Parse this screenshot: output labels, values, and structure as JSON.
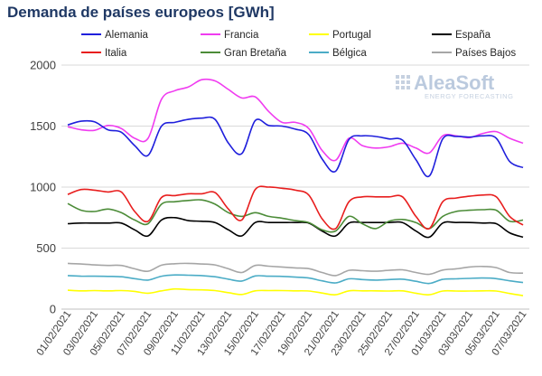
{
  "title": "Demanda de países europeos [GWh]",
  "watermark": {
    "brand": "AleaSoft",
    "tagline": "ENERGY FORECASTING"
  },
  "chart_data": {
    "type": "line",
    "title": "Demanda de países europeos [GWh]",
    "xlabel": "",
    "ylabel": "",
    "ylim": [
      0,
      2000
    ],
    "yticks": [
      0,
      500,
      1000,
      1500,
      2000
    ],
    "grid": true,
    "legend_position": "top",
    "x": [
      "01/02/2021",
      "02/02/2021",
      "03/02/2021",
      "04/02/2021",
      "05/02/2021",
      "06/02/2021",
      "07/02/2021",
      "08/02/2021",
      "09/02/2021",
      "10/02/2021",
      "11/02/2021",
      "12/02/2021",
      "13/02/2021",
      "14/02/2021",
      "15/02/2021",
      "16/02/2021",
      "17/02/2021",
      "18/02/2021",
      "19/02/2021",
      "20/02/2021",
      "21/02/2021",
      "22/02/2021",
      "23/02/2021",
      "24/02/2021",
      "25/02/2021",
      "26/02/2021",
      "27/02/2021",
      "28/02/2021",
      "01/03/2021",
      "02/03/2021",
      "03/03/2021",
      "04/03/2021",
      "05/03/2021",
      "06/03/2021",
      "07/03/2021"
    ],
    "x_tick_labels": [
      "01/02/2021",
      "03/02/2021",
      "05/02/2021",
      "07/02/2021",
      "09/02/2021",
      "11/02/2021",
      "13/02/2021",
      "15/02/2021",
      "17/02/2021",
      "19/02/2021",
      "21/02/2021",
      "23/02/2021",
      "25/02/2021",
      "27/02/2021",
      "01/03/2021",
      "03/03/2021",
      "05/03/2021",
      "07/03/2021"
    ],
    "series": [
      {
        "name": "Alemania",
        "color": "#1f1fdc",
        "values": [
          1510,
          1540,
          1535,
          1470,
          1450,
          1340,
          1260,
          1500,
          1530,
          1555,
          1565,
          1555,
          1360,
          1275,
          1545,
          1505,
          1500,
          1475,
          1430,
          1230,
          1130,
          1390,
          1420,
          1415,
          1395,
          1385,
          1225,
          1090,
          1395,
          1415,
          1410,
          1420,
          1400,
          1210,
          1160
        ]
      },
      {
        "name": "Francia",
        "color": "#f03cf0",
        "values": [
          1495,
          1470,
          1465,
          1505,
          1480,
          1400,
          1400,
          1720,
          1790,
          1820,
          1880,
          1870,
          1800,
          1730,
          1740,
          1620,
          1530,
          1530,
          1480,
          1300,
          1220,
          1400,
          1340,
          1320,
          1330,
          1360,
          1320,
          1280,
          1420,
          1420,
          1405,
          1440,
          1455,
          1400,
          1360
        ]
      },
      {
        "name": "Portugal",
        "color": "#ffff00",
        "values": [
          155,
          150,
          152,
          150,
          152,
          145,
          130,
          150,
          165,
          160,
          158,
          152,
          135,
          120,
          150,
          152,
          152,
          150,
          148,
          132,
          118,
          150,
          150,
          150,
          148,
          150,
          130,
          118,
          148,
          148,
          148,
          150,
          148,
          128,
          110
        ]
      },
      {
        "name": "España",
        "color": "#000000",
        "values": [
          700,
          705,
          705,
          705,
          705,
          650,
          600,
          730,
          750,
          725,
          720,
          710,
          650,
          600,
          710,
          710,
          710,
          710,
          705,
          640,
          600,
          705,
          710,
          710,
          710,
          710,
          640,
          590,
          705,
          710,
          710,
          705,
          700,
          625,
          590
        ]
      },
      {
        "name": "Italia",
        "color": "#e81e1e",
        "values": [
          940,
          980,
          975,
          960,
          960,
          800,
          720,
          915,
          930,
          945,
          945,
          955,
          820,
          730,
          980,
          1000,
          990,
          975,
          935,
          740,
          660,
          880,
          920,
          920,
          920,
          920,
          760,
          660,
          880,
          910,
          925,
          935,
          920,
          760,
          690
        ]
      },
      {
        "name": "Gran Bretaña",
        "color": "#4c8c38",
        "values": [
          865,
          810,
          800,
          820,
          790,
          730,
          700,
          860,
          880,
          890,
          895,
          860,
          790,
          760,
          790,
          760,
          745,
          725,
          710,
          650,
          640,
          760,
          700,
          660,
          720,
          735,
          710,
          660,
          760,
          800,
          810,
          815,
          810,
          720,
          730
        ]
      },
      {
        "name": "Bélgica",
        "color": "#4bacc6",
        "values": [
          275,
          270,
          270,
          268,
          265,
          250,
          238,
          270,
          280,
          278,
          275,
          265,
          245,
          230,
          272,
          270,
          268,
          262,
          255,
          232,
          215,
          248,
          242,
          238,
          242,
          245,
          228,
          210,
          244,
          248,
          252,
          255,
          250,
          232,
          218
        ]
      },
      {
        "name": "Países Bajos",
        "color": "#a6a6a6",
        "values": [
          375,
          370,
          362,
          358,
          358,
          330,
          310,
          360,
          372,
          375,
          370,
          362,
          330,
          300,
          358,
          352,
          345,
          338,
          332,
          300,
          275,
          318,
          315,
          310,
          318,
          322,
          300,
          285,
          320,
          330,
          345,
          350,
          340,
          300,
          295
        ]
      }
    ]
  }
}
